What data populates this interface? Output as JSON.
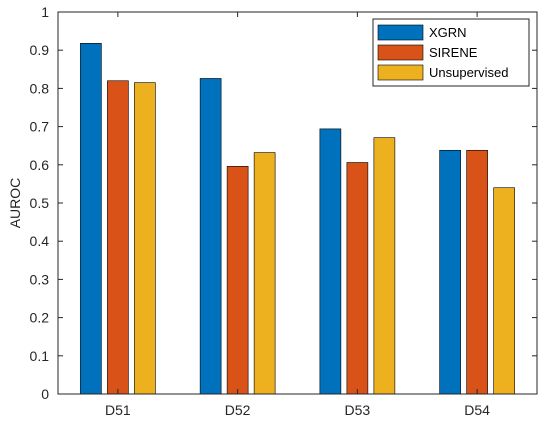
{
  "chart_data": {
    "type": "bar",
    "title": "",
    "xlabel": "",
    "ylabel": "AUROC",
    "ylim": [
      0,
      1
    ],
    "yticks": [
      "0",
      "0.1",
      "0.2",
      "0.3",
      "0.4",
      "0.5",
      "0.6",
      "0.7",
      "0.8",
      "0.9",
      "1"
    ],
    "categories": [
      "D51",
      "D52",
      "D53",
      "D54"
    ],
    "series": [
      {
        "name": "XGRN",
        "color": "#0072BD",
        "values": [
          0.918,
          0.826,
          0.694,
          0.638
        ]
      },
      {
        "name": "SIRENE",
        "color": "#D95319",
        "values": [
          0.82,
          0.596,
          0.606,
          0.638
        ]
      },
      {
        "name": "Unsupervised",
        "color": "#EDB120",
        "values": [
          0.815,
          0.632,
          0.671,
          0.54
        ]
      }
    ],
    "grid": false,
    "legend_position": "top-right",
    "axis_color": "#262626",
    "bar_edge_color": "#000000"
  }
}
